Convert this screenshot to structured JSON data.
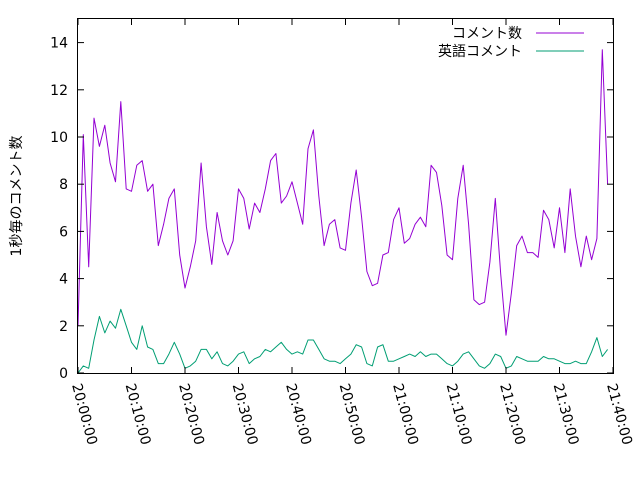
{
  "chart_data": {
    "type": "line",
    "title": "",
    "xlabel": "",
    "ylabel": "1秒毎のコメント数",
    "xlim": [
      "20:00:00",
      "21:40:00"
    ],
    "ylim": [
      0,
      15
    ],
    "grid": false,
    "legend_position": "top-right",
    "x_tick_labels": [
      "20:00:00",
      "20:10:00",
      "20:20:00",
      "20:30:00",
      "20:40:00",
      "20:50:00",
      "21:00:00",
      "21:10:00",
      "21:20:00",
      "21:30:00",
      "21:40:00"
    ],
    "y_tick_labels": [
      "0",
      "2",
      "4",
      "6",
      "8",
      "10",
      "12",
      "14"
    ],
    "x_step_seconds": 60,
    "series": [
      {
        "name": "コメント数",
        "color": "#9400d3",
        "values": [
          2.0,
          10.1,
          4.5,
          10.8,
          9.6,
          10.5,
          8.9,
          8.1,
          11.5,
          7.8,
          7.7,
          8.8,
          9.0,
          7.7,
          8.0,
          5.4,
          6.3,
          7.4,
          7.8,
          5.0,
          3.6,
          4.5,
          5.6,
          8.9,
          6.2,
          4.6,
          6.8,
          5.6,
          5.0,
          5.6,
          7.8,
          7.4,
          6.1,
          7.2,
          6.8,
          7.8,
          9.0,
          9.3,
          7.2,
          7.5,
          8.1,
          7.2,
          6.3,
          9.5,
          10.3,
          7.5,
          5.4,
          6.3,
          6.5,
          5.3,
          5.2,
          7.2,
          8.6,
          6.6,
          4.3,
          3.7,
          3.8,
          5.0,
          5.1,
          6.5,
          7.0,
          5.5,
          5.7,
          6.3,
          6.6,
          6.2,
          8.8,
          8.5,
          7.1,
          5.0,
          4.8,
          7.4,
          8.8,
          6.3,
          3.1,
          2.9,
          3.0,
          4.7,
          7.4,
          4.2,
          1.6,
          3.4,
          5.4,
          5.8,
          5.1,
          5.1,
          4.9,
          6.9,
          6.5,
          5.3,
          7.0,
          5.1,
          7.8,
          5.8,
          4.5,
          5.8,
          4.8,
          5.7,
          13.7,
          8.0
        ]
      },
      {
        "name": "英語コメント",
        "color": "#009e73",
        "values": [
          0.0,
          0.3,
          0.2,
          1.4,
          2.4,
          1.7,
          2.2,
          1.9,
          2.7,
          2.0,
          1.3,
          1.0,
          2.0,
          1.1,
          1.0,
          0.4,
          0.4,
          0.8,
          1.3,
          0.8,
          0.2,
          0.3,
          0.5,
          1.0,
          1.0,
          0.6,
          0.9,
          0.4,
          0.3,
          0.5,
          0.8,
          0.9,
          0.4,
          0.6,
          0.7,
          1.0,
          0.9,
          1.1,
          1.3,
          1.0,
          0.8,
          0.9,
          0.8,
          1.4,
          1.4,
          1.0,
          0.6,
          0.5,
          0.5,
          0.4,
          0.6,
          0.8,
          1.2,
          1.1,
          0.4,
          0.3,
          1.1,
          1.2,
          0.5,
          0.5,
          0.6,
          0.7,
          0.8,
          0.7,
          0.9,
          0.7,
          0.8,
          0.8,
          0.6,
          0.4,
          0.3,
          0.5,
          0.8,
          0.9,
          0.6,
          0.3,
          0.2,
          0.4,
          0.8,
          0.7,
          0.2,
          0.3,
          0.7,
          0.6,
          0.5,
          0.5,
          0.5,
          0.7,
          0.6,
          0.6,
          0.5,
          0.4,
          0.4,
          0.5,
          0.4,
          0.4,
          0.9,
          1.5,
          0.7,
          1.0
        ]
      }
    ]
  }
}
